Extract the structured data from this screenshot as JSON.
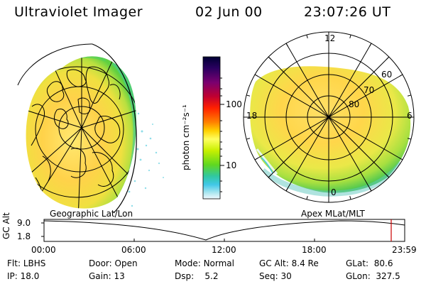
{
  "header": {
    "instrument": "Ultraviolet Imager",
    "date": "02 Jun 00",
    "time": "23:07:26 UT"
  },
  "colorbar": {
    "unit_label": "photon cm⁻²s⁻¹",
    "ticks": [
      "100",
      "10"
    ],
    "colors": [
      "#000033",
      "#2a0060",
      "#7a0070",
      "#c00030",
      "#ff2000",
      "#ff8000",
      "#ffd000",
      "#ffff60",
      "#c8f000",
      "#60d820",
      "#30c8a0",
      "#40c8e8",
      "#b0e8f0",
      "#f0f8ff"
    ]
  },
  "left_panel": {
    "caption": "Geographic Lat/Lon"
  },
  "right_panel": {
    "caption": "Apex MLat/MLT",
    "mlt_labels": {
      "top": "12",
      "left": "18",
      "right": "6",
      "bottom": "0"
    },
    "lat_labels": [
      "60",
      "70",
      "80"
    ]
  },
  "altitude_plot": {
    "ylabel": "GC Alt",
    "yticks": [
      "9.0",
      "1.8"
    ],
    "xticks": [
      "00:00",
      "06:00",
      "12:00",
      "18:00",
      "23:59"
    ],
    "marker_color": "#cc0000"
  },
  "info": {
    "row1": [
      {
        "label": "Flt:",
        "value": "LBHS"
      },
      {
        "label": "Door:",
        "value": "Open"
      },
      {
        "label": "Mode:",
        "value": "Normal"
      },
      {
        "label": "GC Alt:",
        "value": "8.4 Re"
      },
      {
        "label": "GLat:",
        "value": "80.6"
      }
    ],
    "row2": [
      {
        "label": "IP:",
        "value": "18.0"
      },
      {
        "label": "Gain:",
        "value": "13"
      },
      {
        "label": "Dsp:",
        "value": "5.2"
      },
      {
        "label": "Seq:",
        "value": "30"
      },
      {
        "label": "GLon:",
        "value": "327.5"
      }
    ]
  }
}
